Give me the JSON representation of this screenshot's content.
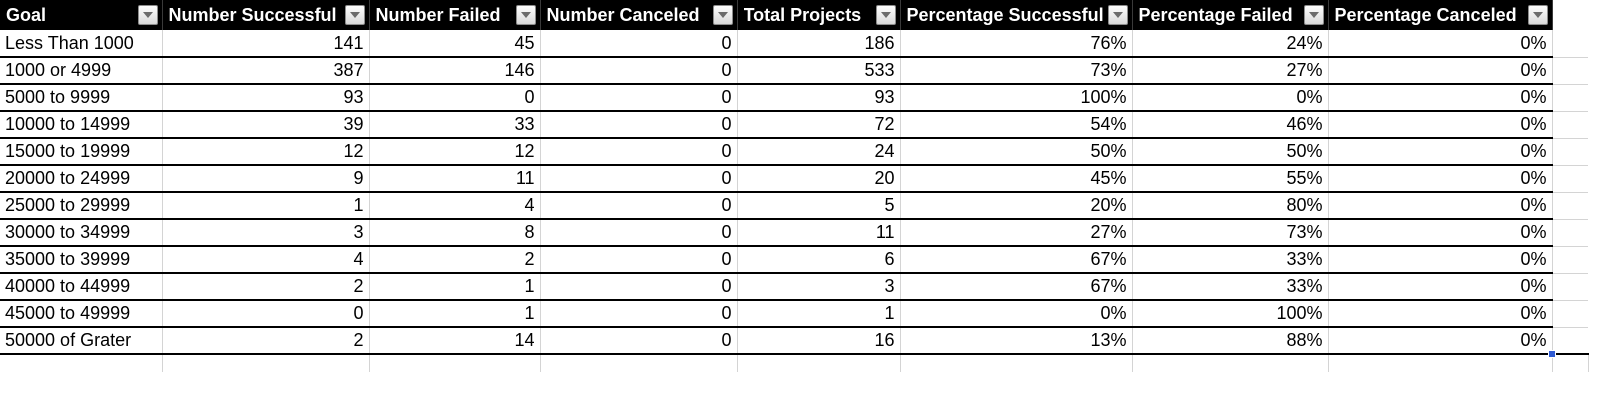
{
  "sheet": {
    "headers": [
      "Goal",
      "Number Successful",
      "Number Failed",
      "Number Canceled",
      "Total Projects",
      "Percentage Successful",
      "Percentage Failed",
      "Percentage Canceled"
    ],
    "rows": [
      [
        "Less Than 1000",
        "141",
        "45",
        "0",
        "186",
        "76%",
        "24%",
        "0%"
      ],
      [
        "1000 or 4999",
        "387",
        "146",
        "0",
        "533",
        "73%",
        "27%",
        "0%"
      ],
      [
        "5000 to 9999",
        "93",
        "0",
        "0",
        "93",
        "100%",
        "0%",
        "0%"
      ],
      [
        "10000 to 14999",
        "39",
        "33",
        "0",
        "72",
        "54%",
        "46%",
        "0%"
      ],
      [
        "15000 to 19999",
        "12",
        "12",
        "0",
        "24",
        "50%",
        "50%",
        "0%"
      ],
      [
        "20000 to 24999",
        "9",
        "11",
        "0",
        "20",
        "45%",
        "55%",
        "0%"
      ],
      [
        "25000 to 29999",
        "1",
        "4",
        "0",
        "5",
        "20%",
        "80%",
        "0%"
      ],
      [
        "30000 to 34999",
        "3",
        "8",
        "0",
        "11",
        "27%",
        "73%",
        "0%"
      ],
      [
        "35000 to 39999",
        "4",
        "2",
        "0",
        "6",
        "67%",
        "33%",
        "0%"
      ],
      [
        "40000 to 44999",
        "2",
        "1",
        "0",
        "3",
        "67%",
        "33%",
        "0%"
      ],
      [
        "45000 to 49999",
        "0",
        "1",
        "0",
        "1",
        "0%",
        "100%",
        "0%"
      ],
      [
        "50000 of Grater",
        "2",
        "14",
        "0",
        "16",
        "13%",
        "88%",
        "0%"
      ]
    ],
    "filter_icon": "filter-dropdown-icon",
    "colors": {
      "header_bg": "#000000",
      "header_text": "#ffffff",
      "selection_handle": "#2f5bd3"
    }
  }
}
